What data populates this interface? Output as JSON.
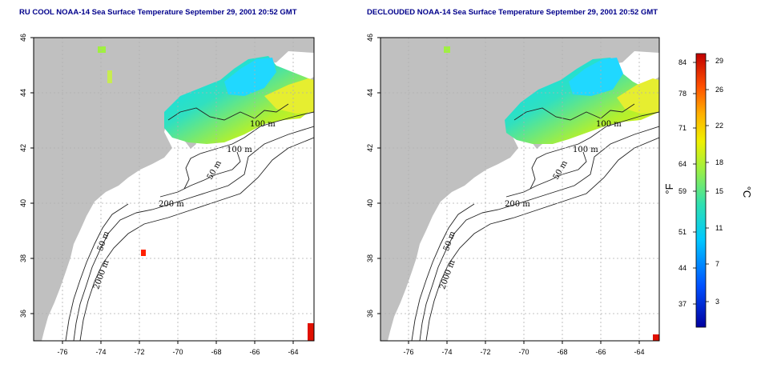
{
  "titles": {
    "left": "RU COOL NOAA-14 Sea Surface Temperature September 29, 2001 20:52 GMT",
    "right": "DECLOUDED NOAA-14 Sea Surface Temperature September 29, 2001 20:52 GMT"
  },
  "axes": {
    "lon_ticks": [
      "-76",
      "-74",
      "-72",
      "-70",
      "-68",
      "-66",
      "-64"
    ],
    "lat_ticks": [
      "46",
      "44",
      "42",
      "40",
      "38",
      "36"
    ]
  },
  "contours": {
    "labels_left": [
      "100 m",
      "100 m",
      "50 m",
      "200 m",
      "50 m",
      "2000 m"
    ],
    "labels_right": [
      "100 m",
      "100 m",
      "50 m",
      "200 m",
      "50 m",
      "2000 m"
    ]
  },
  "colorbar": {
    "fahrenheit_ticks": [
      "84",
      "78",
      "71",
      "64",
      "59",
      "51",
      "44",
      "37"
    ],
    "celsius_ticks": [
      "29",
      "26",
      "22",
      "18",
      "15",
      "11",
      "7",
      "3"
    ],
    "unit_f": "°F",
    "unit_c": "°C"
  },
  "colors": {
    "land": "#c0c0c0",
    "ocean": "#ffffff",
    "grid": "#b0b0b0",
    "title": "#00008b"
  }
}
